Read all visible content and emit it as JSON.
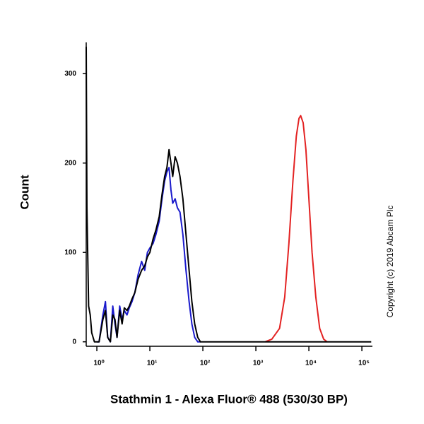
{
  "chart_data": {
    "type": "line",
    "x_label": "Stathmin 1 - Alexa Fluor® 488 (530/30 BP)",
    "y_label": "Count",
    "annotation": "Copyright (c) 2019 Abcam Plc",
    "x_scale": "log",
    "xlim": [
      0.63,
      158000
    ],
    "ylim": [
      -5,
      335
    ],
    "xticks": [
      {
        "value": 1,
        "label": "10⁰"
      },
      {
        "value": 10,
        "label": "10¹"
      },
      {
        "value": 100,
        "label": "10²"
      },
      {
        "value": 1000,
        "label": "10³"
      },
      {
        "value": 10000,
        "label": "10⁴"
      },
      {
        "value": 100000,
        "label": "10⁵"
      }
    ],
    "yticks": [
      0,
      100,
      200,
      300
    ],
    "series": [
      {
        "color": "#000000",
        "x": [
          0.63,
          0.65,
          0.7,
          0.75,
          0.8,
          0.9,
          1.0,
          1.1,
          1.3,
          1.45,
          1.6,
          1.8,
          2.0,
          2.2,
          2.4,
          2.7,
          3.0,
          3.3,
          3.7,
          4.1,
          4.6,
          5.2,
          6.0,
          7,
          8,
          9,
          10,
          11.5,
          13,
          15,
          17,
          19,
          21,
          23,
          25,
          27,
          30,
          33,
          37,
          42,
          48,
          55,
          62,
          70,
          80,
          90,
          150000
        ],
        "values": [
          330,
          150,
          40,
          30,
          10,
          0,
          0,
          0,
          25,
          35,
          5,
          0,
          30,
          25,
          5,
          35,
          20,
          38,
          35,
          40,
          48,
          55,
          70,
          80,
          85,
          95,
          100,
          115,
          125,
          140,
          165,
          185,
          195,
          215,
          200,
          185,
          207,
          200,
          185,
          160,
          120,
          80,
          45,
          20,
          5,
          0,
          0
        ]
      },
      {
        "color": "#1a1acc",
        "x": [
          1.0,
          1.1,
          1.3,
          1.45,
          1.6,
          1.8,
          2.0,
          2.2,
          2.4,
          2.7,
          3.0,
          3.3,
          3.7,
          4.1,
          4.6,
          5.2,
          6.0,
          7,
          8,
          9,
          10,
          11.5,
          13,
          15,
          17,
          19,
          21,
          23,
          25,
          27,
          30,
          33,
          37,
          42,
          48,
          55,
          62,
          70,
          80,
          90
        ],
        "values": [
          0,
          0,
          30,
          45,
          5,
          0,
          40,
          20,
          5,
          40,
          25,
          35,
          30,
          38,
          45,
          55,
          75,
          90,
          80,
          100,
          105,
          110,
          120,
          135,
          160,
          180,
          190,
          195,
          170,
          155,
          160,
          150,
          145,
          120,
          80,
          45,
          20,
          5,
          0,
          0
        ]
      },
      {
        "color": "#e32222",
        "x": [
          1500,
          2000,
          2800,
          3500,
          4200,
          5000,
          5800,
          6500,
          7000,
          7800,
          8800,
          10000,
          11500,
          13500,
          16000,
          19000,
          22000
        ],
        "values": [
          0,
          3,
          15,
          50,
          110,
          180,
          230,
          250,
          253,
          245,
          215,
          160,
          100,
          50,
          15,
          3,
          0
        ]
      }
    ]
  }
}
